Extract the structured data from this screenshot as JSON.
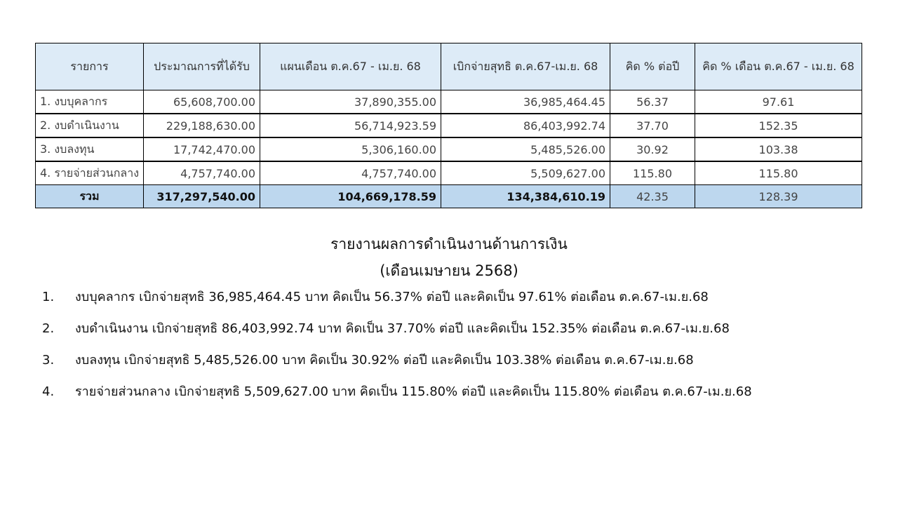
{
  "table": {
    "headers": [
      "รายการ",
      "ประมาณการที่ได้รับ",
      "แผนเดือน ต.ค.67 - เม.ย. 68",
      "เบิกจ่ายสุทธิ ต.ค.67-เม.ย. 68",
      "คิด % ต่อปี",
      "คิด % เดือน ต.ค.67 - เม.ย. 68"
    ],
    "rows": [
      [
        "1. งบบุคลากร",
        "65,608,700.00",
        "37,890,355.00",
        "36,985,464.45",
        "56.37",
        "97.61"
      ],
      [
        "2. งบดำเนินงาน",
        "229,188,630.00",
        "56,714,923.59",
        "86,403,992.74",
        "37.70",
        "152.35"
      ],
      [
        "3. งบลงทุน",
        "17,742,470.00",
        "5,306,160.00",
        "5,485,526.00",
        "30.92",
        "103.38"
      ],
      [
        "4. รายจ่ายส่วนกลาง",
        "4,757,740.00",
        "4,757,740.00",
        "5,509,627.00",
        "115.80",
        "115.80"
      ]
    ],
    "total": [
      "รวม",
      "317,297,540.00",
      "104,669,178.59",
      "134,384,610.19",
      "42.35",
      "128.39"
    ]
  },
  "report": {
    "title": "รายงานผลการดำเนินงานด้านการเงิน",
    "subtitle": "(เดือนเมษายน  2568)",
    "items": [
      {
        "num": "1.",
        "text": "งบบุคลากร เบิกจ่ายสุทธิ 36,985,464.45 บาท คิดเป็น 56.37% ต่อปี และคิดเป็น 97.61% ต่อเดือน ต.ค.67-เม.ย.68"
      },
      {
        "num": "2.",
        "text": "งบดำเนินงาน เบิกจ่ายสุทธิ 86,403,992.74 บาท คิดเป็น 37.70% ต่อปี และคิดเป็น 152.35% ต่อเดือน ต.ค.67-เม.ย.68"
      },
      {
        "num": "3.",
        "text": "งบลงทุน เบิกจ่ายสุทธิ 5,485,526.00 บาท คิดเป็น 30.92% ต่อปี และคิดเป็น 103.38% ต่อเดือน ต.ค.67-เม.ย.68"
      },
      {
        "num": "4.",
        "text": "รายจ่ายส่วนกลาง เบิกจ่ายสุทธิ 5,509,627.00 บาท คิดเป็น 115.80% ต่อปี และคิดเป็น 115.80% ต่อเดือน ต.ค.67-เม.ย.68"
      }
    ]
  }
}
